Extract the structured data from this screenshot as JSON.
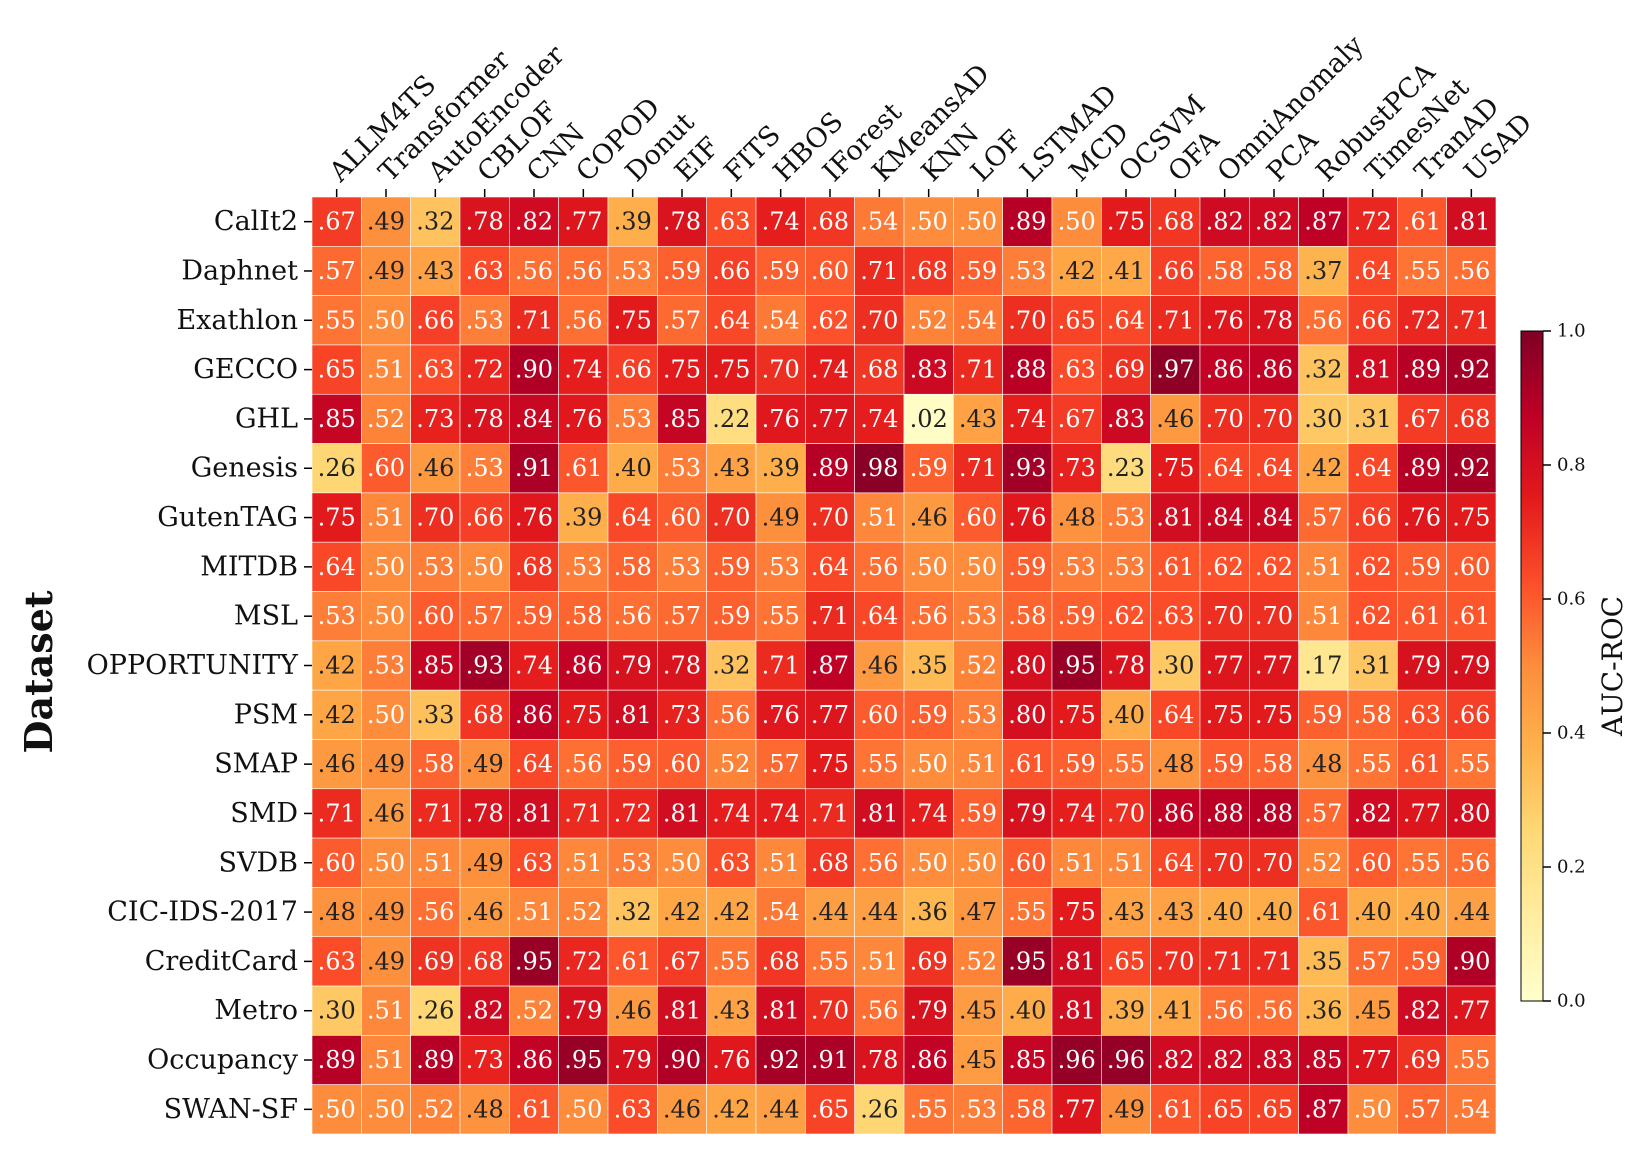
{
  "chart_data": {
    "type": "heatmap",
    "ylabel": "Dataset",
    "colorbar_label": "AUC-ROC",
    "colorbar_ticks": [
      "0.0",
      "0.2",
      "0.4",
      "0.6",
      "0.8",
      "1.0"
    ],
    "value_range": [
      0,
      1
    ],
    "colormap": "YlOrRd",
    "x": [
      "ALLM4TS",
      "Transformer",
      "AutoEncoder",
      "CBLOF",
      "CNN",
      "COPOD",
      "Donut",
      "EIF",
      "FITS",
      "HBOS",
      "IForest",
      "KMeansAD",
      "KNN",
      "LOF",
      "LSTMAD",
      "MCD",
      "OCSVM",
      "OFA",
      "OmniAnomaly",
      "PCA",
      "RobustPCA",
      "TimesNet",
      "TranAD",
      "USAD"
    ],
    "y": [
      "CalIt2",
      "Daphnet",
      "Exathlon",
      "GECCO",
      "GHL",
      "Genesis",
      "GutenTAG",
      "MITDB",
      "MSL",
      "OPPORTUNITY",
      "PSM",
      "SMAP",
      "SMD",
      "SVDB",
      "CIC-IDS-2017",
      "CreditCard",
      "Metro",
      "Occupancy",
      "SWAN-SF"
    ],
    "values": [
      [
        0.67,
        0.49,
        0.32,
        0.78,
        0.82,
        0.77,
        0.39,
        0.78,
        0.63,
        0.74,
        0.68,
        0.54,
        0.5,
        0.5,
        0.89,
        0.5,
        0.75,
        0.68,
        0.82,
        0.82,
        0.87,
        0.72,
        0.61,
        0.81
      ],
      [
        0.57,
        0.49,
        0.43,
        0.63,
        0.56,
        0.56,
        0.53,
        0.59,
        0.66,
        0.59,
        0.6,
        0.71,
        0.68,
        0.59,
        0.53,
        0.42,
        0.41,
        0.66,
        0.58,
        0.58,
        0.37,
        0.64,
        0.55,
        0.56
      ],
      [
        0.55,
        0.5,
        0.66,
        0.53,
        0.71,
        0.56,
        0.75,
        0.57,
        0.64,
        0.54,
        0.62,
        0.7,
        0.52,
        0.54,
        0.7,
        0.65,
        0.64,
        0.71,
        0.76,
        0.78,
        0.56,
        0.66,
        0.72,
        0.71
      ],
      [
        0.65,
        0.51,
        0.63,
        0.72,
        0.9,
        0.74,
        0.66,
        0.75,
        0.75,
        0.7,
        0.74,
        0.68,
        0.83,
        0.71,
        0.88,
        0.63,
        0.69,
        0.97,
        0.86,
        0.86,
        0.32,
        0.81,
        0.89,
        0.92
      ],
      [
        0.85,
        0.52,
        0.73,
        0.78,
        0.84,
        0.76,
        0.53,
        0.85,
        0.22,
        0.76,
        0.77,
        0.74,
        0.02,
        0.43,
        0.74,
        0.67,
        0.83,
        0.46,
        0.7,
        0.7,
        0.3,
        0.31,
        0.67,
        0.68
      ],
      [
        0.26,
        0.6,
        0.46,
        0.53,
        0.91,
        0.61,
        0.4,
        0.53,
        0.43,
        0.39,
        0.89,
        0.98,
        0.59,
        0.71,
        0.93,
        0.73,
        0.23,
        0.75,
        0.64,
        0.64,
        0.42,
        0.64,
        0.89,
        0.92
      ],
      [
        0.75,
        0.51,
        0.7,
        0.66,
        0.76,
        0.39,
        0.64,
        0.6,
        0.7,
        0.49,
        0.7,
        0.51,
        0.46,
        0.6,
        0.76,
        0.48,
        0.53,
        0.81,
        0.84,
        0.84,
        0.57,
        0.66,
        0.76,
        0.75
      ],
      [
        0.64,
        0.5,
        0.53,
        0.5,
        0.68,
        0.53,
        0.58,
        0.53,
        0.59,
        0.53,
        0.64,
        0.56,
        0.5,
        0.5,
        0.59,
        0.53,
        0.53,
        0.61,
        0.62,
        0.62,
        0.51,
        0.62,
        0.59,
        0.6
      ],
      [
        0.53,
        0.5,
        0.6,
        0.57,
        0.59,
        0.58,
        0.56,
        0.57,
        0.59,
        0.55,
        0.71,
        0.64,
        0.56,
        0.53,
        0.58,
        0.59,
        0.62,
        0.63,
        0.7,
        0.7,
        0.51,
        0.62,
        0.61,
        0.61
      ],
      [
        0.42,
        0.53,
        0.85,
        0.93,
        0.74,
        0.86,
        0.79,
        0.78,
        0.32,
        0.71,
        0.87,
        0.46,
        0.35,
        0.52,
        0.8,
        0.95,
        0.78,
        0.3,
        0.77,
        0.77,
        0.17,
        0.31,
        0.79,
        0.79
      ],
      [
        0.42,
        0.5,
        0.33,
        0.68,
        0.86,
        0.75,
        0.81,
        0.73,
        0.56,
        0.76,
        0.77,
        0.6,
        0.59,
        0.53,
        0.8,
        0.75,
        0.4,
        0.64,
        0.75,
        0.75,
        0.59,
        0.58,
        0.63,
        0.66
      ],
      [
        0.46,
        0.49,
        0.58,
        0.49,
        0.64,
        0.56,
        0.59,
        0.6,
        0.52,
        0.57,
        0.75,
        0.55,
        0.5,
        0.51,
        0.61,
        0.59,
        0.55,
        0.48,
        0.59,
        0.58,
        0.48,
        0.55,
        0.61,
        0.55
      ],
      [
        0.71,
        0.46,
        0.71,
        0.78,
        0.81,
        0.71,
        0.72,
        0.81,
        0.74,
        0.74,
        0.71,
        0.81,
        0.74,
        0.59,
        0.79,
        0.74,
        0.7,
        0.86,
        0.88,
        0.88,
        0.57,
        0.82,
        0.77,
        0.8
      ],
      [
        0.6,
        0.5,
        0.51,
        0.49,
        0.63,
        0.51,
        0.53,
        0.5,
        0.63,
        0.51,
        0.68,
        0.56,
        0.5,
        0.5,
        0.6,
        0.51,
        0.51,
        0.64,
        0.7,
        0.7,
        0.52,
        0.6,
        0.55,
        0.56
      ],
      [
        0.48,
        0.49,
        0.56,
        0.46,
        0.51,
        0.52,
        0.32,
        0.42,
        0.42,
        0.54,
        0.44,
        0.44,
        0.36,
        0.47,
        0.55,
        0.75,
        0.43,
        0.43,
        0.4,
        0.4,
        0.61,
        0.4,
        0.4,
        0.44
      ],
      [
        0.63,
        0.49,
        0.69,
        0.68,
        0.95,
        0.72,
        0.61,
        0.67,
        0.55,
        0.68,
        0.55,
        0.51,
        0.69,
        0.52,
        0.95,
        0.81,
        0.65,
        0.7,
        0.71,
        0.71,
        0.35,
        0.57,
        0.59,
        0.9
      ],
      [
        0.3,
        0.51,
        0.26,
        0.82,
        0.52,
        0.79,
        0.46,
        0.81,
        0.43,
        0.81,
        0.7,
        0.56,
        0.79,
        0.45,
        0.4,
        0.81,
        0.39,
        0.41,
        0.56,
        0.56,
        0.36,
        0.45,
        0.82,
        0.77
      ],
      [
        0.89,
        0.51,
        0.89,
        0.73,
        0.86,
        0.95,
        0.79,
        0.9,
        0.76,
        0.92,
        0.91,
        0.78,
        0.86,
        0.45,
        0.85,
        0.96,
        0.96,
        0.82,
        0.82,
        0.83,
        0.85,
        0.77,
        0.69,
        0.55
      ],
      [
        0.5,
        0.5,
        0.52,
        0.48,
        0.61,
        0.5,
        0.63,
        0.46,
        0.42,
        0.44,
        0.65,
        0.26,
        0.55,
        0.53,
        0.58,
        0.77,
        0.49,
        0.61,
        0.65,
        0.65,
        0.87,
        0.5,
        0.57,
        0.54
      ]
    ]
  }
}
